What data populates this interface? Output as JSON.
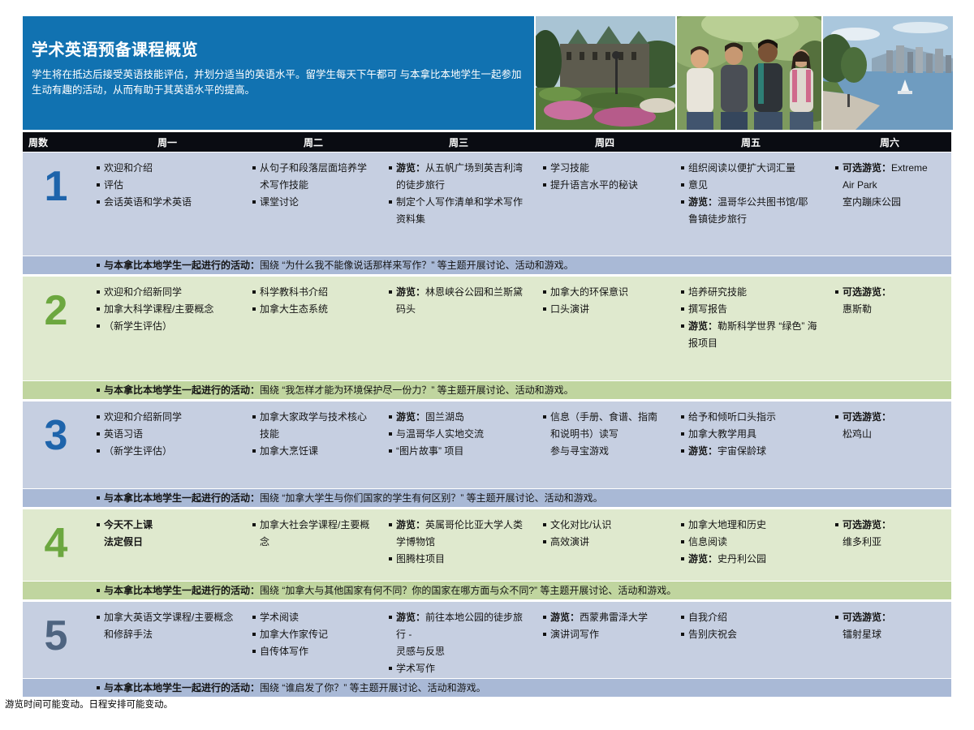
{
  "header": {
    "title": "学术英语预备课程概览",
    "description": "学生将在抵达后接受英语技能评估，并划分适当的英语水平。留学生每天下午都可 与本拿比本地学生一起参加生动有趣的活动，从而有助于其英语水平的提高。",
    "photos": [
      "victoria-empress-hotel-garden",
      "students-group-outdoors",
      "vancouver-waterfront-skyline"
    ]
  },
  "colors": {
    "header_blue": "#1172b1",
    "table_header_bg": "#0a0c12",
    "blue_row": "#c6cfe1",
    "blue_band": "#a9b9d6",
    "green_row": "#dfe9ce",
    "green_band": "#c0d59f",
    "week_number_colors": [
      "#1e64ab",
      "#6ca73f",
      "#1e64ab",
      "#6ca73f",
      "#4e6480"
    ]
  },
  "table": {
    "columns": [
      "周数",
      "周一",
      "周二",
      "周三",
      "周四",
      "周五",
      "周六"
    ],
    "weeks": [
      {
        "number": "1",
        "theme": "blue",
        "days": [
          [
            {
              "t": "欢迎和介绍"
            },
            {
              "t": "评估"
            },
            {
              "t": "会话英语和学术英语"
            }
          ],
          [
            {
              "t": "从句子和段落层面培养学术写作技能"
            },
            {
              "t": "课堂讨论"
            }
          ],
          [
            {
              "b": "游览：",
              "t": "从五帆广场到英吉利湾的徒步旅行"
            },
            {
              "t": "制定个人写作清单和学术写作资料集"
            }
          ],
          [
            {
              "t": "学习技能"
            },
            {
              "t": "提升语言水平的秘诀"
            }
          ],
          [
            {
              "t": "组织阅读以便扩大词汇量"
            },
            {
              "t": "意见"
            },
            {
              "b": "游览：",
              "t": "温哥华公共图书馆/耶鲁镇徒步旅行"
            }
          ],
          [
            {
              "b": "可选游览：",
              "t": "Extreme Air Park\n室内蹦床公园"
            }
          ]
        ],
        "activity": {
          "b": "与本拿比本地学生一起进行的活动：",
          "t": "围绕 “为什么我不能像说话那样来写作？” 等主题开展讨论、活动和游戏。"
        }
      },
      {
        "number": "2",
        "theme": "green",
        "days": [
          [
            {
              "t": "欢迎和介绍新同学"
            },
            {
              "t": "加拿大科学课程/主要概念"
            },
            {
              "t": "（新学生评估）"
            }
          ],
          [
            {
              "t": "科学教科书介绍"
            },
            {
              "t": "加拿大生态系统"
            }
          ],
          [
            {
              "b": "游览：",
              "t": "林恩峡谷公园和兰斯黛码头"
            }
          ],
          [
            {
              "t": "加拿大的环保意识"
            },
            {
              "t": "口头演讲"
            }
          ],
          [
            {
              "t": "培养研究技能"
            },
            {
              "t": "撰写报告"
            },
            {
              "b": "游览：",
              "t": "勒斯科学世界 “绿色” 海报项目"
            }
          ],
          [
            {
              "b": "可选游览：",
              "t": "\n惠斯勒"
            }
          ]
        ],
        "activity": {
          "b": "与本拿比本地学生一起进行的活动：",
          "t": "围绕 “我怎样才能为环境保护尽一份力？” 等主题开展讨论、活动和游戏。"
        }
      },
      {
        "number": "3",
        "theme": "blue",
        "days": [
          [
            {
              "t": "欢迎和介绍新同学"
            },
            {
              "t": "英语习语"
            },
            {
              "t": "（新学生评估）"
            }
          ],
          [
            {
              "t": "加拿大家政学与技术核心技能"
            },
            {
              "t": "加拿大烹饪课"
            }
          ],
          [
            {
              "b": "游览：",
              "t": "固兰湖岛"
            },
            {
              "t": "与温哥华人实地交流"
            },
            {
              "t": "“图片故事” 项目"
            }
          ],
          [
            {
              "t": "信息（手册、食谱、指南和说明书）读写\n参与寻宝游戏"
            }
          ],
          [
            {
              "t": "给予和倾听口头指示"
            },
            {
              "t": "加拿大教学用具"
            },
            {
              "b": "游览：",
              "t": "宇宙保龄球"
            }
          ],
          [
            {
              "b": "可选游览：",
              "t": "\n松鸡山"
            }
          ]
        ],
        "activity": {
          "b": "与本拿比本地学生一起进行的活动：",
          "t": "围绕 “加拿大学生与你们国家的学生有何区别？” 等主题开展讨论、活动和游戏。"
        }
      },
      {
        "number": "4",
        "theme": "green",
        "days": [
          [
            {
              "b": "今天不上课\n法定假日"
            }
          ],
          [
            {
              "t": "加拿大社会学课程/主要概念"
            }
          ],
          [
            {
              "b": "游览：",
              "t": "英属哥伦比亚大学人类学博物馆"
            },
            {
              "t": "图腾柱项目"
            }
          ],
          [
            {
              "t": "文化对比/认识"
            },
            {
              "t": "高效演讲"
            }
          ],
          [
            {
              "t": "加拿大地理和历史"
            },
            {
              "t": "信息阅读"
            },
            {
              "b": "游览：",
              "t": "史丹利公园"
            }
          ],
          [
            {
              "b": "可选游览：",
              "t": "\n维多利亚"
            }
          ]
        ],
        "activity": {
          "b": "与本拿比本地学生一起进行的活动：",
          "t": "围绕 “加拿大与其他国家有何不同？你的国家在哪方面与众不同?” 等主题开展讨论、活动和游戏。"
        }
      },
      {
        "number": "5",
        "theme": "blue",
        "days": [
          [
            {
              "t": "加拿大英语文学课程/主要概念和修辞手法"
            }
          ],
          [
            {
              "t": "学术阅读"
            },
            {
              "t": "加拿大作家传记"
            },
            {
              "t": "自传体写作"
            }
          ],
          [
            {
              "b": "游览：",
              "t": "前往本地公园的徒步旅行 -\n灵感与反思"
            },
            {
              "t": "学术写作"
            }
          ],
          [
            {
              "b": "游览：",
              "t": "西蒙弗雷泽大学"
            },
            {
              "t": "演讲词写作"
            }
          ],
          [
            {
              "t": "自我介绍"
            },
            {
              "t": "告别庆祝会"
            }
          ],
          [
            {
              "b": "可选游览：",
              "t": "\n镭射星球"
            }
          ]
        ],
        "activity": {
          "b": "与本拿比本地学生一起进行的活动：",
          "t": "围绕 “谁启发了你？” 等主题开展讨论、活动和游戏。"
        }
      }
    ]
  },
  "footer": {
    "note": "游览时间可能变动。日程安排可能变动。"
  }
}
